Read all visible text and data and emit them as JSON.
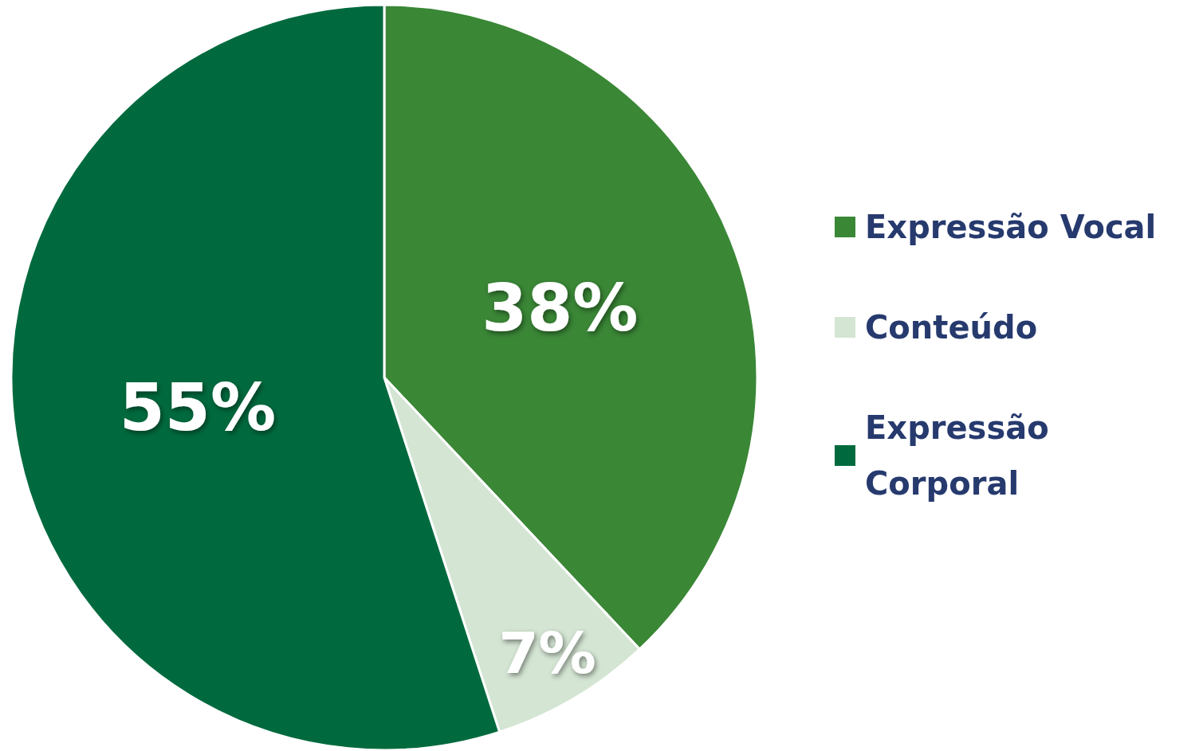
{
  "chart_data": {
    "type": "pie",
    "categories": [
      "Expressão Vocal",
      "Conteúdo",
      "Expressão Corporal"
    ],
    "values": [
      38,
      7,
      55
    ],
    "colors": [
      "#3a8736",
      "#d4e5d3",
      "#006a3e"
    ],
    "value_labels": [
      "38%",
      "7%",
      "55%"
    ],
    "legend": "right"
  }
}
